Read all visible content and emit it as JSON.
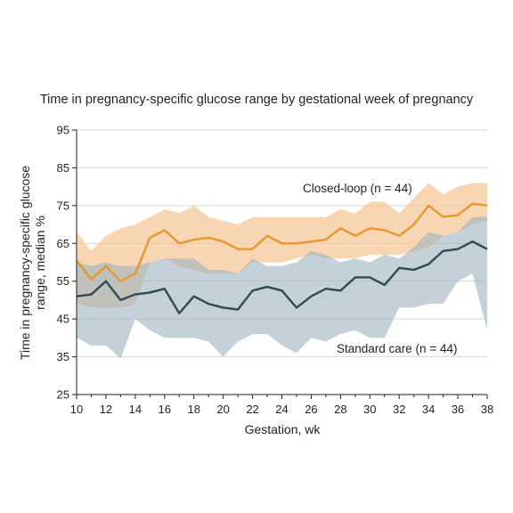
{
  "chart_data": {
    "type": "line",
    "title": "Time in pregnancy-specific glucose range by gestational week of pregnancy",
    "xlabel": "Gestation, wk",
    "ylabel_lines": [
      "Time in pregnancy-specific glucose",
      "range, median %"
    ],
    "xlim": [
      10,
      38
    ],
    "ylim": [
      25,
      95
    ],
    "xticks": [
      10,
      12,
      14,
      16,
      18,
      20,
      22,
      24,
      26,
      28,
      30,
      32,
      34,
      36,
      38
    ],
    "yticks": [
      25,
      35,
      45,
      55,
      65,
      75,
      85,
      95
    ],
    "grid": true,
    "x": [
      10,
      11,
      12,
      13,
      14,
      15,
      16,
      17,
      18,
      19,
      20,
      21,
      22,
      23,
      24,
      25,
      26,
      27,
      28,
      29,
      30,
      31,
      32,
      33,
      34,
      35,
      36,
      37,
      38
    ],
    "series": [
      {
        "name": "Closed-loop (n = 44)",
        "color": "#e8962e",
        "band_color": "#f6c89a",
        "median": [
          60.5,
          55.5,
          59,
          55,
          57,
          66.5,
          68.5,
          65,
          66,
          66.5,
          65.5,
          63.5,
          63.5,
          67,
          65,
          65,
          65.5,
          66,
          69,
          67,
          69,
          68.5,
          67,
          70,
          75,
          72,
          72.5,
          75.5,
          75
        ],
        "lower": [
          49,
          48,
          48,
          48,
          49,
          60,
          61,
          59,
          58,
          57,
          57,
          57,
          60,
          60,
          60,
          61,
          62,
          61,
          61,
          61,
          62,
          62,
          62,
          63,
          64,
          67,
          68,
          70,
          71
        ],
        "upper": [
          68,
          63,
          67,
          69,
          70,
          72,
          74,
          73,
          75,
          72,
          71,
          70,
          72,
          72,
          72,
          72,
          72,
          72,
          74,
          73,
          76,
          76,
          73,
          77,
          81,
          78,
          80,
          81,
          81
        ]
      },
      {
        "name": "Standard care (n = 44)",
        "color": "#2e4a55",
        "band_color": "#9fb4c0",
        "median": [
          51,
          51.5,
          55,
          50,
          51.5,
          52,
          53,
          46.5,
          51,
          49,
          48,
          47.5,
          52.5,
          53.5,
          52.5,
          48,
          51,
          53,
          52.5,
          56,
          56,
          54,
          58.5,
          58,
          59.5,
          63,
          63.5,
          65.5,
          63.5
        ],
        "lower": [
          40,
          38,
          38,
          34.5,
          45,
          42,
          40,
          40,
          40,
          39,
          35,
          39,
          41,
          41,
          38,
          36,
          40,
          39,
          41,
          42,
          40,
          40,
          48,
          48,
          49,
          49,
          55,
          57,
          42
        ],
        "upper": [
          60,
          59,
          60,
          59,
          59,
          60,
          61,
          61,
          61,
          58,
          58,
          57,
          61,
          59,
          59,
          60,
          63,
          62,
          60,
          61,
          60,
          62,
          61,
          64,
          68,
          67,
          68,
          72,
          72
        ]
      }
    ],
    "annotations": [
      "Closed-loop (n = 44)",
      "Standard care (n = 44)"
    ]
  }
}
